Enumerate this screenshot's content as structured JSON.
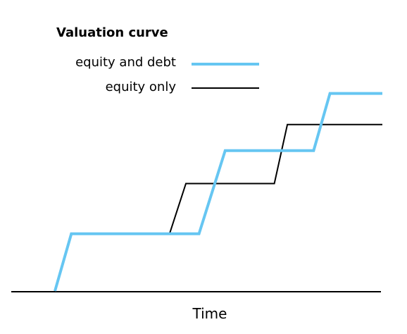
{
  "chart_data": {
    "type": "line",
    "title": "Valuation curve",
    "xlabel": "Time",
    "ylabel": "",
    "grid": false,
    "legend_position": "top-left",
    "series": [
      {
        "name": "equity and debt",
        "color": "#66c6f2",
        "x": [
          0.0,
          0.05,
          0.35,
          0.44,
          0.52,
          0.79,
          0.84,
          1.0
        ],
        "y": [
          0.0,
          0.33,
          0.33,
          0.33,
          0.81,
          0.81,
          1.14,
          1.14
        ]
      },
      {
        "name": "equity only",
        "color": "#000000",
        "x": [
          0.0,
          0.05,
          0.35,
          0.4,
          0.67,
          0.71,
          1.0
        ],
        "y": [
          0.0,
          0.33,
          0.33,
          0.62,
          0.62,
          0.96,
          0.96
        ]
      }
    ]
  }
}
